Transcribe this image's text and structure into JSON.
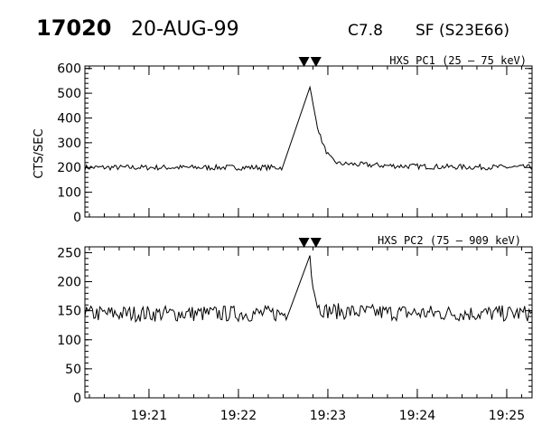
{
  "header": {
    "event_number": "17020",
    "date": "20-AUG-99",
    "goes_class": "C7.8",
    "flare_label": "SF (S23E66)"
  },
  "ylabel": "CTS/SEC",
  "chart_data": [
    {
      "type": "line",
      "title": "HXS PC1 (25 – 75 keV)",
      "ylabel": "CTS/SEC",
      "xlim": [
        "19:20:17",
        "19:25:17"
      ],
      "x_ticks": [
        "19:21",
        "19:22",
        "19:23",
        "19:24",
        "19:25"
      ],
      "ylim": [
        0,
        610
      ],
      "y_ticks": [
        0,
        100,
        200,
        300,
        400,
        500,
        600
      ],
      "grid": false,
      "baseline": 200,
      "noise": 11,
      "peak": {
        "time": "19:22:48",
        "value": 525
      },
      "gap": {
        "start": "19:22:29",
        "end": "19:22:48"
      },
      "decay": {
        "end": "19:23:12",
        "level": 215
      },
      "markers": [
        "19:22:44",
        "19:22:52"
      ],
      "color": "#000000"
    },
    {
      "type": "line",
      "title": "HXS PC2 (75 – 909 keV)",
      "ylabel": "",
      "xlim": [
        "19:20:17",
        "19:25:17"
      ],
      "x_ticks": [
        "19:21",
        "19:22",
        "19:23",
        "19:24",
        "19:25"
      ],
      "ylim": [
        0,
        260
      ],
      "y_ticks": [
        0,
        50,
        100,
        150,
        200,
        250
      ],
      "grid": false,
      "baseline": 145,
      "noise": 14,
      "peak": {
        "time": "19:22:48",
        "value": 245
      },
      "gap": {
        "start": "19:22:32",
        "end": "19:22:48"
      },
      "decay": {
        "end": "19:22:58",
        "level": 150
      },
      "markers": [
        "19:22:44",
        "19:22:52"
      ],
      "color": "#000000"
    }
  ]
}
